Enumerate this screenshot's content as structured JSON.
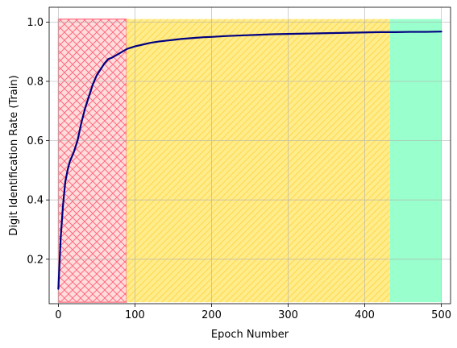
{
  "chart_data": {
    "type": "line",
    "title": "",
    "xlabel": "Epoch Number",
    "ylabel": "Digit Identification Rate (Train)",
    "xlim": [
      -12,
      512
    ],
    "ylim": [
      0.05,
      1.05
    ],
    "xticks": [
      0,
      100,
      200,
      300,
      400,
      500
    ],
    "yticks": [
      0.2,
      0.4,
      0.6,
      0.8,
      1.0
    ],
    "xtick_labels": [
      "0",
      "100",
      "200",
      "300",
      "400",
      "500"
    ],
    "ytick_labels": [
      "0.2",
      "0.4",
      "0.6",
      "0.8",
      "1.0"
    ],
    "grid": true,
    "legend": "none",
    "regions": [
      {
        "x0": 0,
        "x1": 89,
        "y0": 0.055,
        "y1": 1.01,
        "fill": "#ffdddd",
        "hatch": "crosshatch",
        "hatch_color": "#ff6b7f",
        "edge": "#ff6b7f"
      },
      {
        "x0": 89,
        "x1": 433,
        "y0": 0.055,
        "y1": 1.01,
        "fill": "#ffec8b",
        "hatch": "diagonal",
        "hatch_color": "#ffd84d",
        "edge": "none"
      },
      {
        "x0": 433,
        "x1": 500,
        "y0": 0.055,
        "y1": 1.01,
        "fill": "#99ffcc",
        "hatch": "none",
        "hatch_color": "",
        "edge": "none"
      }
    ],
    "series": [
      {
        "color": "#000080",
        "x": [
          0,
          3,
          6,
          9,
          12,
          15,
          20,
          25,
          30,
          35,
          40,
          45,
          50,
          55,
          60,
          65,
          70,
          80,
          90,
          100,
          110,
          120,
          130,
          140,
          150,
          160,
          170,
          180,
          190,
          200,
          220,
          240,
          260,
          280,
          300,
          320,
          340,
          360,
          380,
          400,
          420,
          440,
          460,
          480,
          500
        ],
        "y": [
          0.1,
          0.27,
          0.38,
          0.46,
          0.5,
          0.53,
          0.56,
          0.6,
          0.66,
          0.71,
          0.75,
          0.79,
          0.82,
          0.84,
          0.86,
          0.875,
          0.88,
          0.895,
          0.91,
          0.918,
          0.924,
          0.93,
          0.934,
          0.937,
          0.94,
          0.943,
          0.945,
          0.947,
          0.949,
          0.95,
          0.953,
          0.955,
          0.957,
          0.959,
          0.96,
          0.961,
          0.962,
          0.963,
          0.964,
          0.965,
          0.966,
          0.966,
          0.967,
          0.967,
          0.968
        ]
      }
    ]
  }
}
